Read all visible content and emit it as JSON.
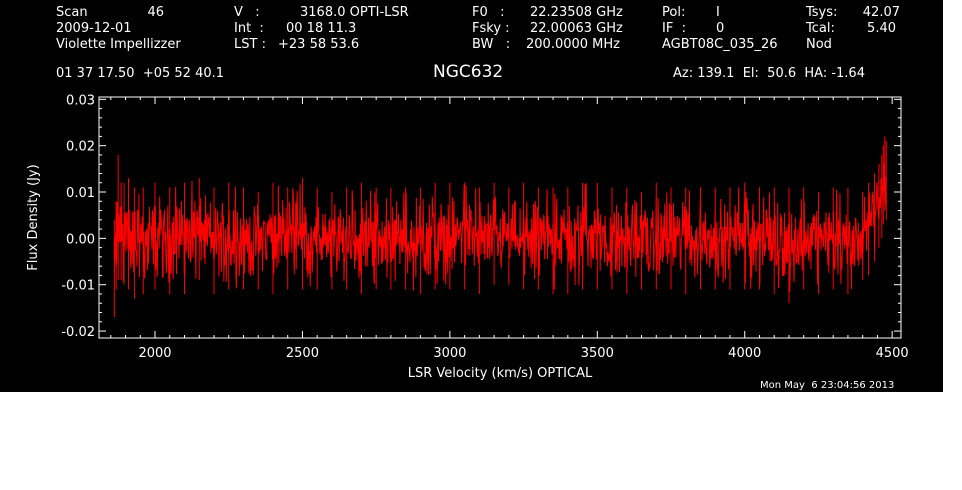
{
  "header": {
    "scan_label": "Scan",
    "scan_value": "46",
    "date": "2009-12-01",
    "observer": "Violette Impellizzer",
    "v_label": "V   :",
    "v_value": "3168.0 OPTI-LSR",
    "int_label": "Int  :",
    "int_value": "00 18 11.3",
    "lst_label": "LST :",
    "lst_value": "+23 58 53.6",
    "f0_label": "F0   :",
    "f0_value": "22.23508 GHz",
    "fsky_label": "Fsky :",
    "fsky_value": "22.00063 GHz",
    "bw_label": "BW   :",
    "bw_value": "200.0000 MHz",
    "pol_label": "Pol:",
    "pol_value": "I",
    "if_label": "IF  :",
    "if_value": "0",
    "project": "AGBT08C_035_26",
    "tsys_label": "Tsys:",
    "tsys_value": "42.07",
    "tcal_label": "Tcal:",
    "tcal_value": "5.40",
    "mode": "Nod",
    "coords": "01 37 17.50  +05 52 40.1",
    "source": "NGC632",
    "az_el_ha": "Az: 139.1  El:  50.6  HA: -1.64"
  },
  "footer": {
    "timestamp": "Mon May  6 23:04:56 2013"
  },
  "chart_data": {
    "type": "line",
    "xlabel": "LSR Velocity (km/s) OPTICAL",
    "ylabel": "Flux Density (Jy)",
    "xlim": [
      1810,
      4530
    ],
    "ylim": [
      -0.0215,
      0.0305
    ],
    "xticks": [
      2000,
      2500,
      3000,
      3500,
      4000,
      4500
    ],
    "xtick_labels": [
      "2000",
      "2500",
      "3000",
      "3500",
      "4000",
      "4500"
    ],
    "yticks": [
      -0.02,
      -0.01,
      0.0,
      0.01,
      0.02,
      0.03
    ],
    "ytick_labels": [
      "-0.02",
      "-0.01",
      "0.00",
      "0.01",
      "0.02",
      "0.03"
    ],
    "series_color": "#ff0000",
    "series": [
      {
        "x": [
          1862,
          1868,
          1875,
          1885,
          1895,
          1910,
          1930,
          1960,
          2000,
          2050,
          2100,
          2150,
          2200,
          2250,
          2300,
          2350,
          2400,
          2450,
          2500,
          2550,
          2600,
          2650,
          2700,
          2750,
          2800,
          2850,
          2900,
          2950,
          3000,
          3050,
          3100,
          3150,
          3200,
          3250,
          3300,
          3350,
          3400,
          3450,
          3500,
          3550,
          3600,
          3650,
          3700,
          3750,
          3800,
          3850,
          3900,
          3950,
          4000,
          4050,
          4100,
          4150,
          4200,
          4250,
          4300,
          4350,
          4400,
          4420,
          4440,
          4455,
          4465,
          4470,
          4475,
          4480
        ],
        "y": [
          -0.008,
          -0.003,
          0.001,
          0.003,
          0.0015,
          0.001,
          0.0,
          -0.001,
          0.0015,
          -0.001,
          0.0008,
          0.0015,
          -0.0005,
          0.0015,
          -0.001,
          0.0008,
          0.0,
          0.0008,
          0.0008,
          0.0005,
          -0.0015,
          0.0,
          0.0008,
          0.0005,
          0.0005,
          -0.0005,
          -0.0005,
          0.0,
          0.0,
          0.0015,
          0.0,
          0.0008,
          0.0008,
          0.0,
          0.0005,
          -0.0005,
          0.0,
          0.0005,
          0.0015,
          0.0,
          0.0,
          0.0005,
          -0.0005,
          0.0,
          -0.0005,
          0.0005,
          0.0,
          0.0,
          0.001,
          0.0008,
          0.0005,
          -0.0015,
          0.0,
          0.0,
          0.0015,
          -0.0005,
          0.0005,
          0.002,
          0.005,
          0.008,
          0.01,
          0.012,
          0.013,
          0.012
        ],
        "min": [
          -0.017,
          -0.011,
          -0.009,
          -0.009,
          -0.01,
          -0.011,
          -0.013,
          -0.012,
          -0.011,
          -0.012,
          -0.012,
          -0.009,
          -0.012,
          -0.011,
          -0.011,
          -0.011,
          -0.012,
          -0.011,
          -0.011,
          -0.011,
          -0.011,
          -0.011,
          -0.012,
          -0.011,
          -0.011,
          -0.011,
          -0.012,
          -0.011,
          -0.011,
          -0.011,
          -0.012,
          -0.01,
          -0.01,
          -0.011,
          -0.011,
          -0.012,
          -0.012,
          -0.011,
          -0.011,
          -0.011,
          -0.012,
          -0.011,
          -0.011,
          -0.011,
          -0.012,
          -0.011,
          -0.011,
          -0.011,
          -0.011,
          -0.011,
          -0.012,
          -0.014,
          -0.011,
          -0.012,
          -0.011,
          -0.012,
          -0.009,
          -0.008,
          -0.005,
          -0.002,
          0.0,
          0.003,
          0.006,
          0.004
        ],
        "max": [
          0.004,
          0.008,
          0.018,
          0.012,
          0.012,
          0.013,
          0.011,
          0.011,
          0.012,
          0.011,
          0.012,
          0.013,
          0.011,
          0.012,
          0.011,
          0.01,
          0.012,
          0.011,
          0.013,
          0.011,
          0.01,
          0.011,
          0.012,
          0.011,
          0.011,
          0.011,
          0.011,
          0.012,
          0.012,
          0.012,
          0.011,
          0.012,
          0.011,
          0.012,
          0.011,
          0.011,
          0.011,
          0.012,
          0.012,
          0.011,
          0.011,
          0.01,
          0.012,
          0.011,
          0.011,
          0.011,
          0.011,
          0.011,
          0.012,
          0.011,
          0.011,
          0.011,
          0.011,
          0.01,
          0.011,
          0.011,
          0.01,
          0.012,
          0.014,
          0.016,
          0.018,
          0.02,
          0.022,
          0.021
        ]
      }
    ]
  }
}
